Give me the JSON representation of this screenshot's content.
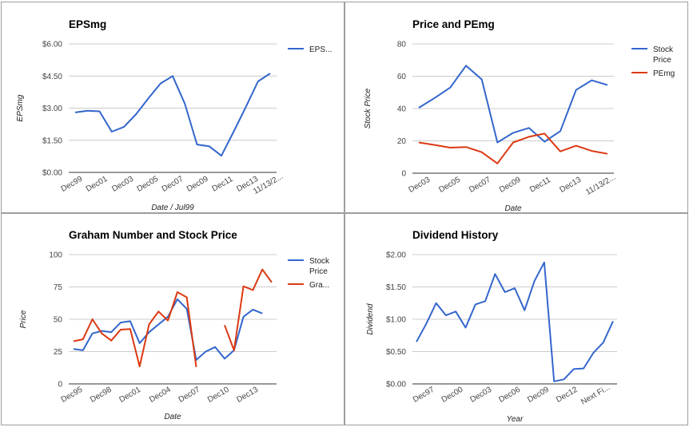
{
  "chart_data": [
    {
      "type": "line",
      "title": "EPSmg",
      "xlabel": "Date / Jul99",
      "ylabel": "EPSmg",
      "ylim": [
        0,
        6
      ],
      "yticks": [
        "$0.00",
        "$1.50",
        "$3.00",
        "$4.50",
        "$6.00"
      ],
      "xticks": [
        "Dec99",
        "Dec01",
        "Dec03",
        "Dec05",
        "Dec07",
        "Dec09",
        "Dec11",
        "Dec13",
        "11/13/2..."
      ],
      "legend": "right",
      "series": [
        {
          "name": "EPS...",
          "color": "#3366cc",
          "values": [
            2.8,
            2.88,
            2.85,
            1.9,
            2.12,
            2.72,
            3.45,
            4.15,
            4.5,
            3.2,
            1.3,
            1.22,
            0.78,
            1.9,
            3.05,
            4.25,
            4.62
          ]
        }
      ]
    },
    {
      "type": "line",
      "title": "Price and PEmg",
      "xlabel": "Date",
      "ylabel": "Stock Price",
      "ylim": [
        0,
        80
      ],
      "yticks": [
        "0",
        "20",
        "40",
        "60",
        "80"
      ],
      "xticks": [
        "Dec03",
        "Dec05",
        "Dec07",
        "Dec09",
        "Dec11",
        "Dec13",
        "11/13/2..."
      ],
      "legend": "right",
      "series": [
        {
          "name": "Stock Price",
          "color": "#3366cc",
          "values": [
            40.5,
            46.5,
            53,
            66.5,
            58,
            19,
            25,
            28,
            19.5,
            26,
            51.5,
            57.5,
            54.5
          ]
        },
        {
          "name": "PEmg",
          "color": "#dc3912",
          "values": [
            19,
            17.5,
            15.8,
            16.2,
            13,
            6,
            19,
            22.5,
            24.5,
            13.5,
            17,
            13.8,
            12
          ]
        }
      ]
    },
    {
      "type": "line",
      "title": "Graham Number and Stock Price",
      "xlabel": "Date",
      "ylabel": "Price",
      "ylim": [
        0,
        100
      ],
      "yticks": [
        "0",
        "25",
        "50",
        "75",
        "100"
      ],
      "xticks": [
        "Dec95",
        "Dec98",
        "Dec01",
        "Dec04",
        "Dec07",
        "Dec10",
        "Dec13"
      ],
      "legend": "right",
      "series": [
        {
          "name": "Stock Price",
          "color": "#3366cc",
          "values": [
            27,
            26,
            39,
            41,
            40,
            47.5,
            48.5,
            31.5,
            40,
            46,
            52,
            65.5,
            58,
            18.5,
            25,
            28.5,
            19.5,
            26,
            52,
            57.5,
            54.5
          ]
        },
        {
          "name": "Gra...",
          "color": "#dc3912",
          "values": [
            33,
            34.5,
            50,
            39,
            33.5,
            42,
            42.5,
            13.5,
            46,
            56,
            49,
            71,
            67,
            13,
            null,
            null,
            45.5,
            26,
            75.5,
            72.5,
            88.5,
            78.5
          ]
        }
      ]
    },
    {
      "type": "line",
      "title": "Dividend History",
      "xlabel": "Year",
      "ylabel": "Dividend",
      "ylim": [
        0,
        2
      ],
      "yticks": [
        "$0.00",
        "$0.50",
        "$1.00",
        "$1.50",
        "$2.00"
      ],
      "xticks": [
        "Dec97",
        "Dec00",
        "Dec03",
        "Dec06",
        "Dec09",
        "Dec12",
        "Next Fi..."
      ],
      "series": [
        {
          "name": "Dividend",
          "color": "#3366cc",
          "values": [
            0.65,
            0.93,
            1.25,
            1.06,
            1.12,
            0.87,
            1.23,
            1.28,
            1.7,
            1.42,
            1.48,
            1.14,
            1.59,
            1.88,
            0.04,
            0.07,
            0.23,
            0.24,
            0.48,
            0.64,
            0.97
          ]
        }
      ]
    }
  ]
}
